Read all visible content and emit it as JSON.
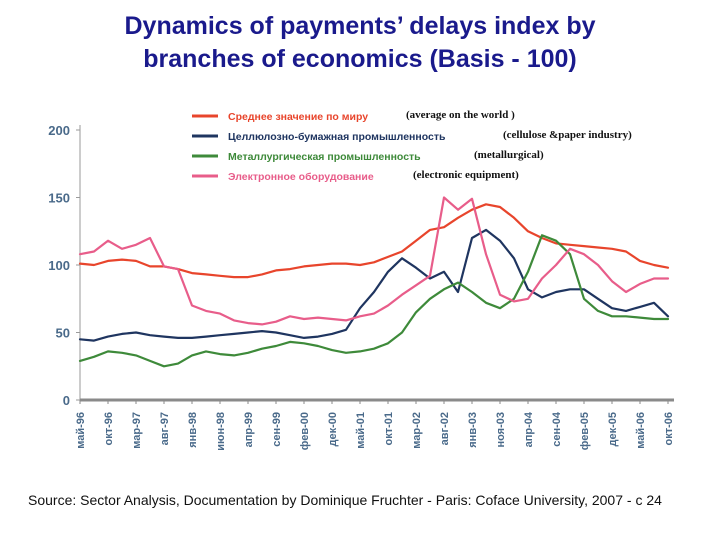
{
  "title": {
    "line1": "Dynamics of payments’ delays index by",
    "line2": "branches of economics (Basis - 100)"
  },
  "source": "Source: Sector Analysis, Documentation by Dominique Fruchter - Paris: Coface University, 2007 - c 24",
  "chart_data": {
    "type": "line",
    "ylim": [
      0,
      200
    ],
    "yticks": [
      "0",
      "50",
      "100",
      "150",
      "200"
    ],
    "x_labels": [
      "май-96",
      "окт-96",
      "мар-97",
      "авг-97",
      "янв-98",
      "июн-98",
      "апр-99",
      "сен-99",
      "фев-00",
      "дек-00",
      "май-01",
      "окт-01",
      "мар-02",
      "авг-02",
      "янв-03",
      "ноя-03",
      "апр-04",
      "сен-04",
      "фев-05",
      "дек-05",
      "май-06",
      "окт-06"
    ],
    "series": [
      {
        "name": "Среднее значение по миру",
        "translation": "(average on the world )",
        "color": "#e8452c",
        "x": [
          0,
          0.5,
          1,
          1.5,
          2,
          2.5,
          3,
          3.5,
          4,
          4.5,
          5,
          5.5,
          6,
          6.5,
          7,
          7.5,
          8,
          8.5,
          9,
          9.5,
          10,
          10.5,
          11,
          11.5,
          12,
          12.5,
          13,
          13.5,
          14,
          14.5,
          15,
          15.5,
          16,
          16.5,
          17,
          17.5,
          18,
          18.5,
          19,
          19.5,
          20,
          20.5,
          21
        ],
        "values": [
          101,
          100,
          103,
          104,
          103,
          99,
          99,
          97,
          94,
          93,
          92,
          91,
          91,
          93,
          96,
          97,
          99,
          100,
          101,
          101,
          100,
          102,
          106,
          110,
          118,
          126,
          128,
          135,
          141,
          145,
          143,
          135,
          125,
          120,
          116,
          115,
          114,
          113,
          112,
          110,
          103,
          100,
          98
        ]
      },
      {
        "name": "Целлюлозно-бумажная промышленность",
        "translation": "(cellulose &paper industry)",
        "color": "#1f3560",
        "x": [
          0,
          0.5,
          1,
          1.5,
          2,
          2.5,
          3,
          3.5,
          4,
          4.5,
          5,
          5.5,
          6,
          6.5,
          7,
          7.5,
          8,
          8.5,
          9,
          9.5,
          10,
          10.5,
          11,
          11.5,
          12,
          12.5,
          13,
          13.5,
          14,
          14.5,
          15,
          15.5,
          16,
          16.5,
          17,
          17.5,
          18,
          18.5,
          19,
          19.5,
          20,
          20.5,
          21
        ],
        "values": [
          45,
          44,
          47,
          49,
          50,
          48,
          47,
          46,
          46,
          47,
          48,
          49,
          50,
          51,
          50,
          48,
          46,
          47,
          49,
          52,
          68,
          80,
          95,
          105,
          98,
          90,
          95,
          80,
          120,
          126,
          118,
          105,
          82,
          76,
          80,
          82,
          82,
          75,
          68,
          66,
          69,
          72,
          62
        ]
      },
      {
        "name": "Металлургическая промышленность",
        "translation": "(metallurgical)",
        "color": "#3e8a3a",
        "x": [
          0,
          0.5,
          1,
          1.5,
          2,
          2.5,
          3,
          3.5,
          4,
          4.5,
          5,
          5.5,
          6,
          6.5,
          7,
          7.5,
          8,
          8.5,
          9,
          9.5,
          10,
          10.5,
          11,
          11.5,
          12,
          12.5,
          13,
          13.5,
          14,
          14.5,
          15,
          15.5,
          16,
          16.5,
          17,
          17.5,
          18,
          18.5,
          19,
          19.5,
          20,
          20.5,
          21
        ],
        "values": [
          29,
          32,
          36,
          35,
          33,
          29,
          25,
          27,
          33,
          36,
          34,
          33,
          35,
          38,
          40,
          43,
          42,
          40,
          37,
          35,
          36,
          38,
          42,
          50,
          65,
          75,
          82,
          87,
          80,
          72,
          68,
          75,
          95,
          122,
          118,
          108,
          75,
          66,
          62,
          62,
          61,
          60,
          60
        ]
      },
      {
        "name": "Электронное оборудование",
        "translation": "(electronic equipment)",
        "color": "#e85d8a",
        "x": [
          0,
          0.5,
          1,
          1.5,
          2,
          2.5,
          3,
          3.5,
          4,
          4.5,
          5,
          5.5,
          6,
          6.5,
          7,
          7.5,
          8,
          8.5,
          9,
          9.5,
          10,
          10.5,
          11,
          11.5,
          12,
          12.5,
          13,
          13.5,
          14,
          14.5,
          15,
          15.5,
          16,
          16.5,
          17,
          17.5,
          18,
          18.5,
          19,
          19.5,
          20,
          20.5,
          21
        ],
        "values": [
          108,
          110,
          118,
          112,
          115,
          120,
          99,
          97,
          70,
          66,
          64,
          59,
          57,
          56,
          58,
          62,
          60,
          61,
          60,
          59,
          62,
          64,
          70,
          78,
          85,
          92,
          150,
          141,
          149,
          108,
          78,
          73,
          75,
          90,
          100,
          112,
          108,
          100,
          88,
          80,
          86,
          90,
          90
        ]
      }
    ]
  }
}
